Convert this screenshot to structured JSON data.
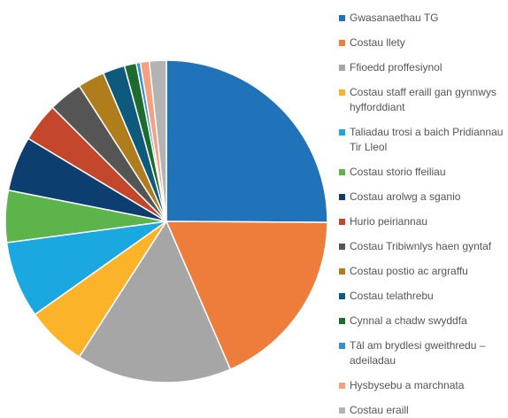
{
  "chart_data": {
    "type": "pie",
    "categories": [
      "Gwasanaethau TG",
      "Costau llety",
      "Ffioedd proffesiynol",
      "Costau staff eraill gan gynnwys hyfforddiant",
      "Taliadau trosi a baich Pridiannau Tir Lleol",
      "Costau storio ffeiliau",
      "Costau arolwg a sganio",
      "Hurio peiriannau",
      "Costau Tribiwnlys haen gyntaf",
      "Costau postio ac argraffu",
      "Costau telathrebu",
      "Cynnal a chadw swyddfa",
      "Tâl am brydlesi gweithredu – adeiladau",
      "Hysbysebu a marchnata",
      "Costau eraill"
    ],
    "values": [
      25.1,
      18.4,
      15.6,
      6.1,
      7.7,
      5.2,
      5.5,
      3.9,
      3.4,
      2.7,
      2.2,
      1.2,
      0.4,
      0.9,
      1.7
    ],
    "colors": [
      "#2173b9",
      "#ee7d3b",
      "#a6a6a6",
      "#fbb42a",
      "#1ba7df",
      "#5db44b",
      "#0d3e70",
      "#c4472b",
      "#555555",
      "#b07d1d",
      "#0d5a7d",
      "#1e6b2e",
      "#3a8dcf",
      "#f4a081",
      "#b3b3b3"
    ],
    "legend": "right"
  }
}
